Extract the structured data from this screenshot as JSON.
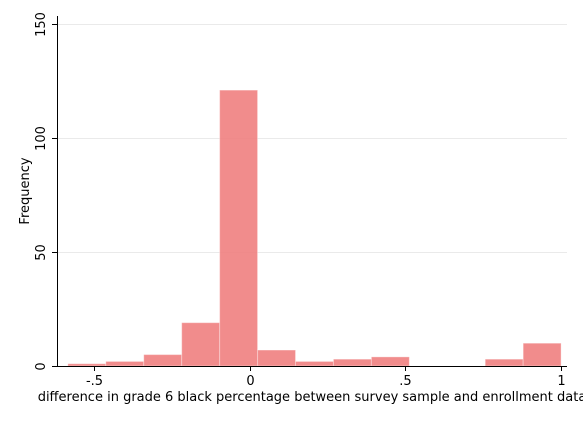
{
  "chart_data": {
    "type": "bar",
    "title": "",
    "xlabel": "difference in grade 6 black percentage between survey sample and enrollment data",
    "ylabel": "Frequency",
    "xlim": [
      -0.62,
      1.02
    ],
    "ylim": [
      0,
      150
    ],
    "x_ticks": [
      {
        "value": -0.5,
        "label": "-.5"
      },
      {
        "value": 0,
        "label": "0"
      },
      {
        "value": 0.5,
        "label": ".5"
      },
      {
        "value": 1,
        "label": "1"
      }
    ],
    "y_ticks": [
      {
        "value": 0,
        "label": "0"
      },
      {
        "value": 50,
        "label": "50"
      },
      {
        "value": 100,
        "label": "100"
      },
      {
        "value": 150,
        "label": "150"
      }
    ],
    "bar_color": "#f08080",
    "grid": true,
    "bins": [
      {
        "start": -0.585,
        "end": -0.463,
        "value": 1
      },
      {
        "start": -0.463,
        "end": -0.341,
        "value": 2
      },
      {
        "start": -0.341,
        "end": -0.219,
        "value": 5
      },
      {
        "start": -0.219,
        "end": -0.097,
        "value": 19
      },
      {
        "start": -0.097,
        "end": 0.025,
        "value": 121
      },
      {
        "start": 0.025,
        "end": 0.147,
        "value": 7
      },
      {
        "start": 0.147,
        "end": 0.269,
        "value": 2
      },
      {
        "start": 0.269,
        "end": 0.391,
        "value": 3
      },
      {
        "start": 0.391,
        "end": 0.513,
        "value": 4
      },
      {
        "start": 0.513,
        "end": 0.635,
        "value": 0
      },
      {
        "start": 0.635,
        "end": 0.757,
        "value": 0
      },
      {
        "start": 0.757,
        "end": 0.879,
        "value": 3
      },
      {
        "start": 0.879,
        "end": 1.001,
        "value": 10
      }
    ]
  }
}
